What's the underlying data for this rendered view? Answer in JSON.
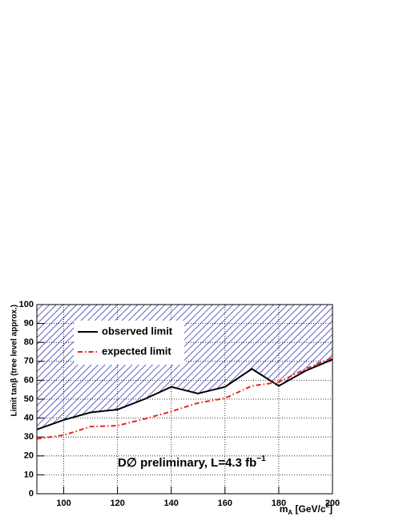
{
  "chart_data": {
    "type": "line",
    "y_label": "Limit tanβ (tree level approx.)",
    "x_label": [
      "m",
      "A",
      " [GeV/c",
      "2",
      "]"
    ],
    "annotation": [
      "D∅ preliminary, L=4.3 fb",
      "−1"
    ],
    "x": [
      90,
      100,
      110,
      120,
      130,
      140,
      150,
      160,
      170,
      180,
      190,
      200
    ],
    "series": [
      {
        "name": "observed limit",
        "color": "#000000",
        "linestyle": "solid",
        "values": [
          34,
          39,
          43,
          44.5,
          50,
          56.5,
          53,
          56.5,
          66,
          57,
          65,
          71
        ],
        "fill_above": true
      },
      {
        "name": "expected limit",
        "color": "#e8211f",
        "linestyle": "dashdot",
        "values": [
          29,
          31,
          35.5,
          36,
          39.5,
          43.5,
          48,
          50.5,
          57,
          59,
          66,
          72
        ]
      }
    ],
    "xlim": [
      90,
      200
    ],
    "xticks": [
      100,
      120,
      140,
      160,
      180,
      200
    ],
    "ylim": [
      0,
      100
    ],
    "yticks": [
      0,
      10,
      20,
      30,
      40,
      50,
      60,
      70,
      80,
      90,
      100
    ],
    "grid": true,
    "hatch_color": "#3a3ab8"
  }
}
